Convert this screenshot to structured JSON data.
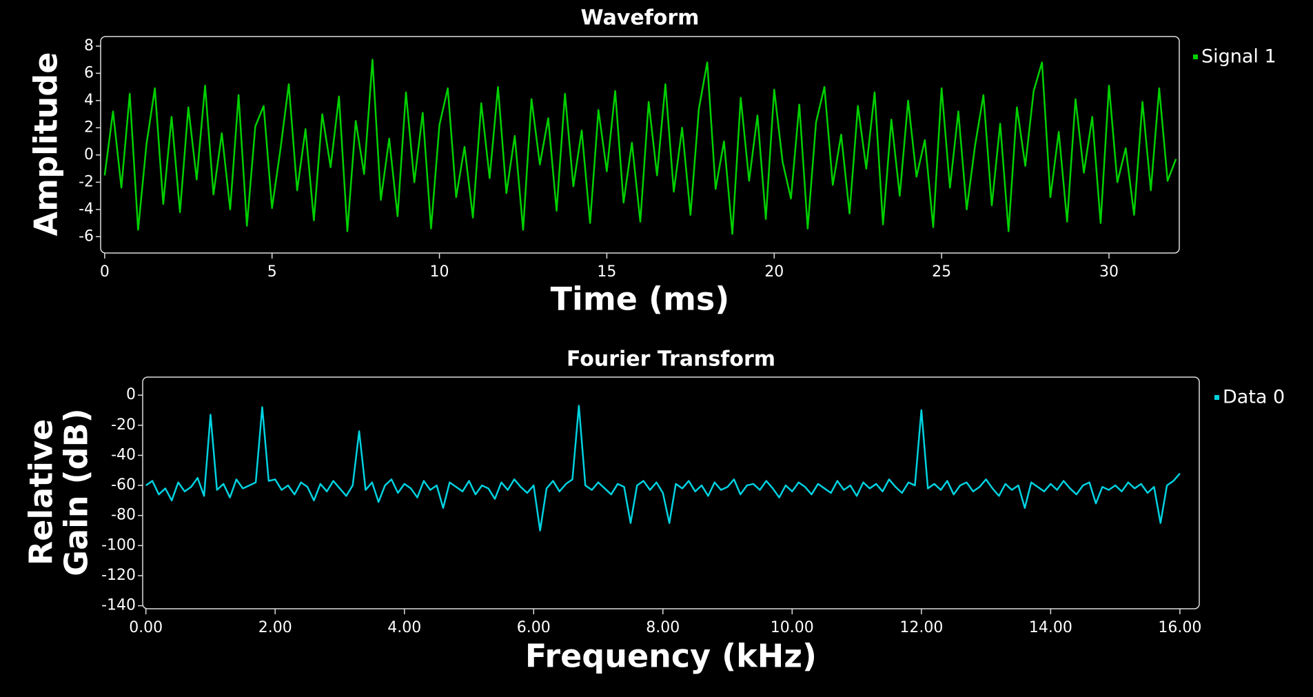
{
  "chart_data": [
    {
      "type": "line",
      "title": "Waveform",
      "xlabel": "Time (ms)",
      "ylabel": "Amplitude",
      "xlim": [
        -0.12,
        32.1
      ],
      "ylim": [
        -7.2,
        8.7
      ],
      "xticks": [
        0,
        5,
        10,
        15,
        20,
        25,
        30
      ],
      "yticks": [
        -6,
        -4,
        -2,
        0,
        2,
        4,
        6,
        8
      ],
      "x": [
        0,
        0.25,
        0.5,
        0.75,
        1,
        1.25,
        1.5,
        1.75,
        2,
        2.25,
        2.5,
        2.75,
        3,
        3.25,
        3.5,
        3.75,
        4,
        4.25,
        4.5,
        4.75,
        5,
        5.25,
        5.5,
        5.75,
        6,
        6.25,
        6.5,
        6.75,
        7,
        7.25,
        7.5,
        7.75,
        8,
        8.25,
        8.5,
        8.75,
        9,
        9.25,
        9.5,
        9.75,
        10,
        10.25,
        10.5,
        10.75,
        11,
        11.25,
        11.5,
        11.75,
        12,
        12.25,
        12.5,
        12.75,
        13,
        13.25,
        13.5,
        13.75,
        14,
        14.25,
        14.5,
        14.75,
        15,
        15.25,
        15.5,
        15.75,
        16,
        16.25,
        16.5,
        16.75,
        17,
        17.25,
        17.5,
        17.75,
        18,
        18.25,
        18.5,
        18.75,
        19,
        19.25,
        19.5,
        19.75,
        20,
        20.25,
        20.5,
        20.75,
        21,
        21.25,
        21.5,
        21.75,
        22,
        22.25,
        22.5,
        22.75,
        23,
        23.25,
        23.5,
        23.75,
        24,
        24.25,
        24.5,
        24.75,
        25,
        25.25,
        25.5,
        25.75,
        26,
        26.25,
        26.5,
        26.75,
        27,
        27.25,
        27.5,
        27.75,
        28,
        28.25,
        28.5,
        28.75,
        29,
        29.25,
        29.5,
        29.75,
        30,
        30.25,
        30.5,
        30.75,
        31,
        31.25,
        31.5,
        31.75,
        32
      ],
      "series": [
        {
          "name": "Signal 1",
          "color": "#00d000",
          "values": [
            -1.5,
            3.2,
            -2.4,
            4.5,
            -5.5,
            0.8,
            4.9,
            -3.6,
            2.8,
            -4.2,
            3.5,
            -1.8,
            5.1,
            -2.9,
            1.6,
            -4.0,
            4.4,
            -5.2,
            2.1,
            3.6,
            -3.9,
            0.4,
            5.2,
            -2.6,
            1.9,
            -4.8,
            3.0,
            -0.9,
            4.3,
            -5.6,
            2.5,
            -1.4,
            7.0,
            -3.3,
            1.2,
            -4.5,
            4.6,
            -2.0,
            3.1,
            -5.4,
            2.2,
            4.9,
            -3.1,
            0.6,
            -4.6,
            3.8,
            -1.7,
            5.0,
            -2.8,
            1.4,
            -5.5,
            4.1,
            -0.7,
            2.7,
            -4.1,
            4.5,
            -2.3,
            1.8,
            -5.0,
            3.3,
            -1.2,
            4.7,
            -3.5,
            0.9,
            -4.9,
            3.9,
            -1.5,
            5.2,
            -2.7,
            2.0,
            -4.4,
            3.4,
            6.8,
            -2.5,
            1.0,
            -5.8,
            4.2,
            -1.9,
            2.9,
            -4.7,
            4.8,
            -0.5,
            -3.2,
            3.7,
            -5.4,
            2.4,
            5.0,
            -2.2,
            1.5,
            -4.3,
            3.6,
            -1.0,
            4.6,
            -5.1,
            2.6,
            -3.0,
            4.0,
            -1.6,
            1.1,
            -5.3,
            4.9,
            -2.4,
            3.2,
            -4.0,
            0.7,
            4.4,
            -3.7,
            2.3,
            -5.6,
            3.5,
            -0.8,
            4.7,
            6.8,
            -3.1,
            1.7,
            -4.9,
            4.1,
            -1.3,
            2.8,
            -5.0,
            5.1,
            -2.0,
            0.5,
            -4.4,
            3.9,
            -2.6,
            4.9,
            -1.9,
            -0.3
          ]
        }
      ]
    },
    {
      "type": "line",
      "title": "Fourier Transform",
      "xlabel": "Frequency (kHz)",
      "ylabel": "Relative Gain (dB)",
      "xlim": [
        -0.05,
        16.3
      ],
      "ylim": [
        -142,
        12
      ],
      "xticks": [
        {
          "value": 0,
          "label": "0.00"
        },
        {
          "value": 2,
          "label": "2.00"
        },
        {
          "value": 4,
          "label": "4.00"
        },
        {
          "value": 6,
          "label": "6.00"
        },
        {
          "value": 8,
          "label": "8.00"
        },
        {
          "value": 10,
          "label": "10.00"
        },
        {
          "value": 12,
          "label": "12.00"
        },
        {
          "value": 14,
          "label": "14.00"
        },
        {
          "value": 16,
          "label": "16.00"
        }
      ],
      "yticks": [
        0,
        -20,
        -40,
        -60,
        -80,
        -100,
        -120,
        -140
      ],
      "x": [
        0,
        0.1,
        0.2,
        0.3,
        0.4,
        0.5,
        0.6,
        0.7,
        0.8,
        0.9,
        1,
        1.1,
        1.2,
        1.3,
        1.4,
        1.5,
        1.6,
        1.7,
        1.8,
        1.9,
        2,
        2.1,
        2.2,
        2.3,
        2.4,
        2.5,
        2.6,
        2.7,
        2.8,
        2.9,
        3,
        3.1,
        3.2,
        3.3,
        3.4,
        3.5,
        3.6,
        3.7,
        3.8,
        3.9,
        4,
        4.1,
        4.2,
        4.3,
        4.4,
        4.5,
        4.6,
        4.7,
        4.8,
        4.9,
        5,
        5.1,
        5.2,
        5.3,
        5.4,
        5.5,
        5.6,
        5.7,
        5.8,
        5.9,
        6,
        6.1,
        6.2,
        6.3,
        6.4,
        6.5,
        6.6,
        6.7,
        6.8,
        6.9,
        7,
        7.1,
        7.2,
        7.3,
        7.4,
        7.5,
        7.6,
        7.7,
        7.8,
        7.9,
        8,
        8.1,
        8.2,
        8.3,
        8.4,
        8.5,
        8.6,
        8.7,
        8.8,
        8.9,
        9,
        9.1,
        9.2,
        9.3,
        9.4,
        9.5,
        9.6,
        9.7,
        9.8,
        9.9,
        10,
        10.1,
        10.2,
        10.3,
        10.4,
        10.5,
        10.6,
        10.7,
        10.8,
        10.9,
        11,
        11.1,
        11.2,
        11.3,
        11.4,
        11.5,
        11.6,
        11.7,
        11.8,
        11.9,
        12,
        12.1,
        12.2,
        12.3,
        12.4,
        12.5,
        12.6,
        12.7,
        12.8,
        12.9,
        13,
        13.1,
        13.2,
        13.3,
        13.4,
        13.5,
        13.6,
        13.7,
        13.8,
        13.9,
        14,
        14.1,
        14.2,
        14.3,
        14.4,
        14.5,
        14.6,
        14.7,
        14.8,
        14.9,
        15,
        15.1,
        15.2,
        15.3,
        15.4,
        15.5,
        15.6,
        15.7,
        15.8,
        15.9,
        16
      ],
      "series": [
        {
          "name": "Data 0",
          "color": "#00d2e0",
          "values": [
            -60,
            -57,
            -66,
            -62,
            -70,
            -58,
            -64,
            -61,
            -55,
            -67,
            -13,
            -63,
            -59,
            -68,
            -56,
            -62,
            -60,
            -58,
            -8,
            -57,
            -56,
            -63,
            -60,
            -66,
            -58,
            -61,
            -70,
            -59,
            -64,
            -57,
            -62,
            -67,
            -60,
            -24,
            -63,
            -58,
            -71,
            -60,
            -56,
            -65,
            -59,
            -62,
            -68,
            -57,
            -63,
            -60,
            -75,
            -58,
            -61,
            -64,
            -57,
            -66,
            -60,
            -62,
            -69,
            -58,
            -63,
            -56,
            -61,
            -65,
            -60,
            -90,
            -62,
            -57,
            -64,
            -59,
            -56,
            -7,
            -60,
            -63,
            -58,
            -62,
            -66,
            -59,
            -61,
            -85,
            -60,
            -57,
            -63,
            -58,
            -65,
            -85,
            -59,
            -62,
            -57,
            -64,
            -60,
            -67,
            -58,
            -63,
            -61,
            -56,
            -66,
            -60,
            -59,
            -63,
            -57,
            -62,
            -68,
            -60,
            -64,
            -58,
            -61,
            -66,
            -59,
            -62,
            -65,
            -57,
            -63,
            -60,
            -67,
            -58,
            -62,
            -59,
            -64,
            -56,
            -61,
            -65,
            -58,
            -60,
            -10,
            -62,
            -59,
            -63,
            -57,
            -66,
            -60,
            -58,
            -64,
            -61,
            -56,
            -62,
            -67,
            -59,
            -63,
            -60,
            -75,
            -58,
            -61,
            -64,
            -59,
            -63,
            -57,
            -62,
            -66,
            -60,
            -58,
            -72,
            -61,
            -63,
            -60,
            -64,
            -58,
            -62,
            -59,
            -65,
            -61,
            -85,
            -60,
            -57,
            -52
          ]
        }
      ]
    }
  ]
}
